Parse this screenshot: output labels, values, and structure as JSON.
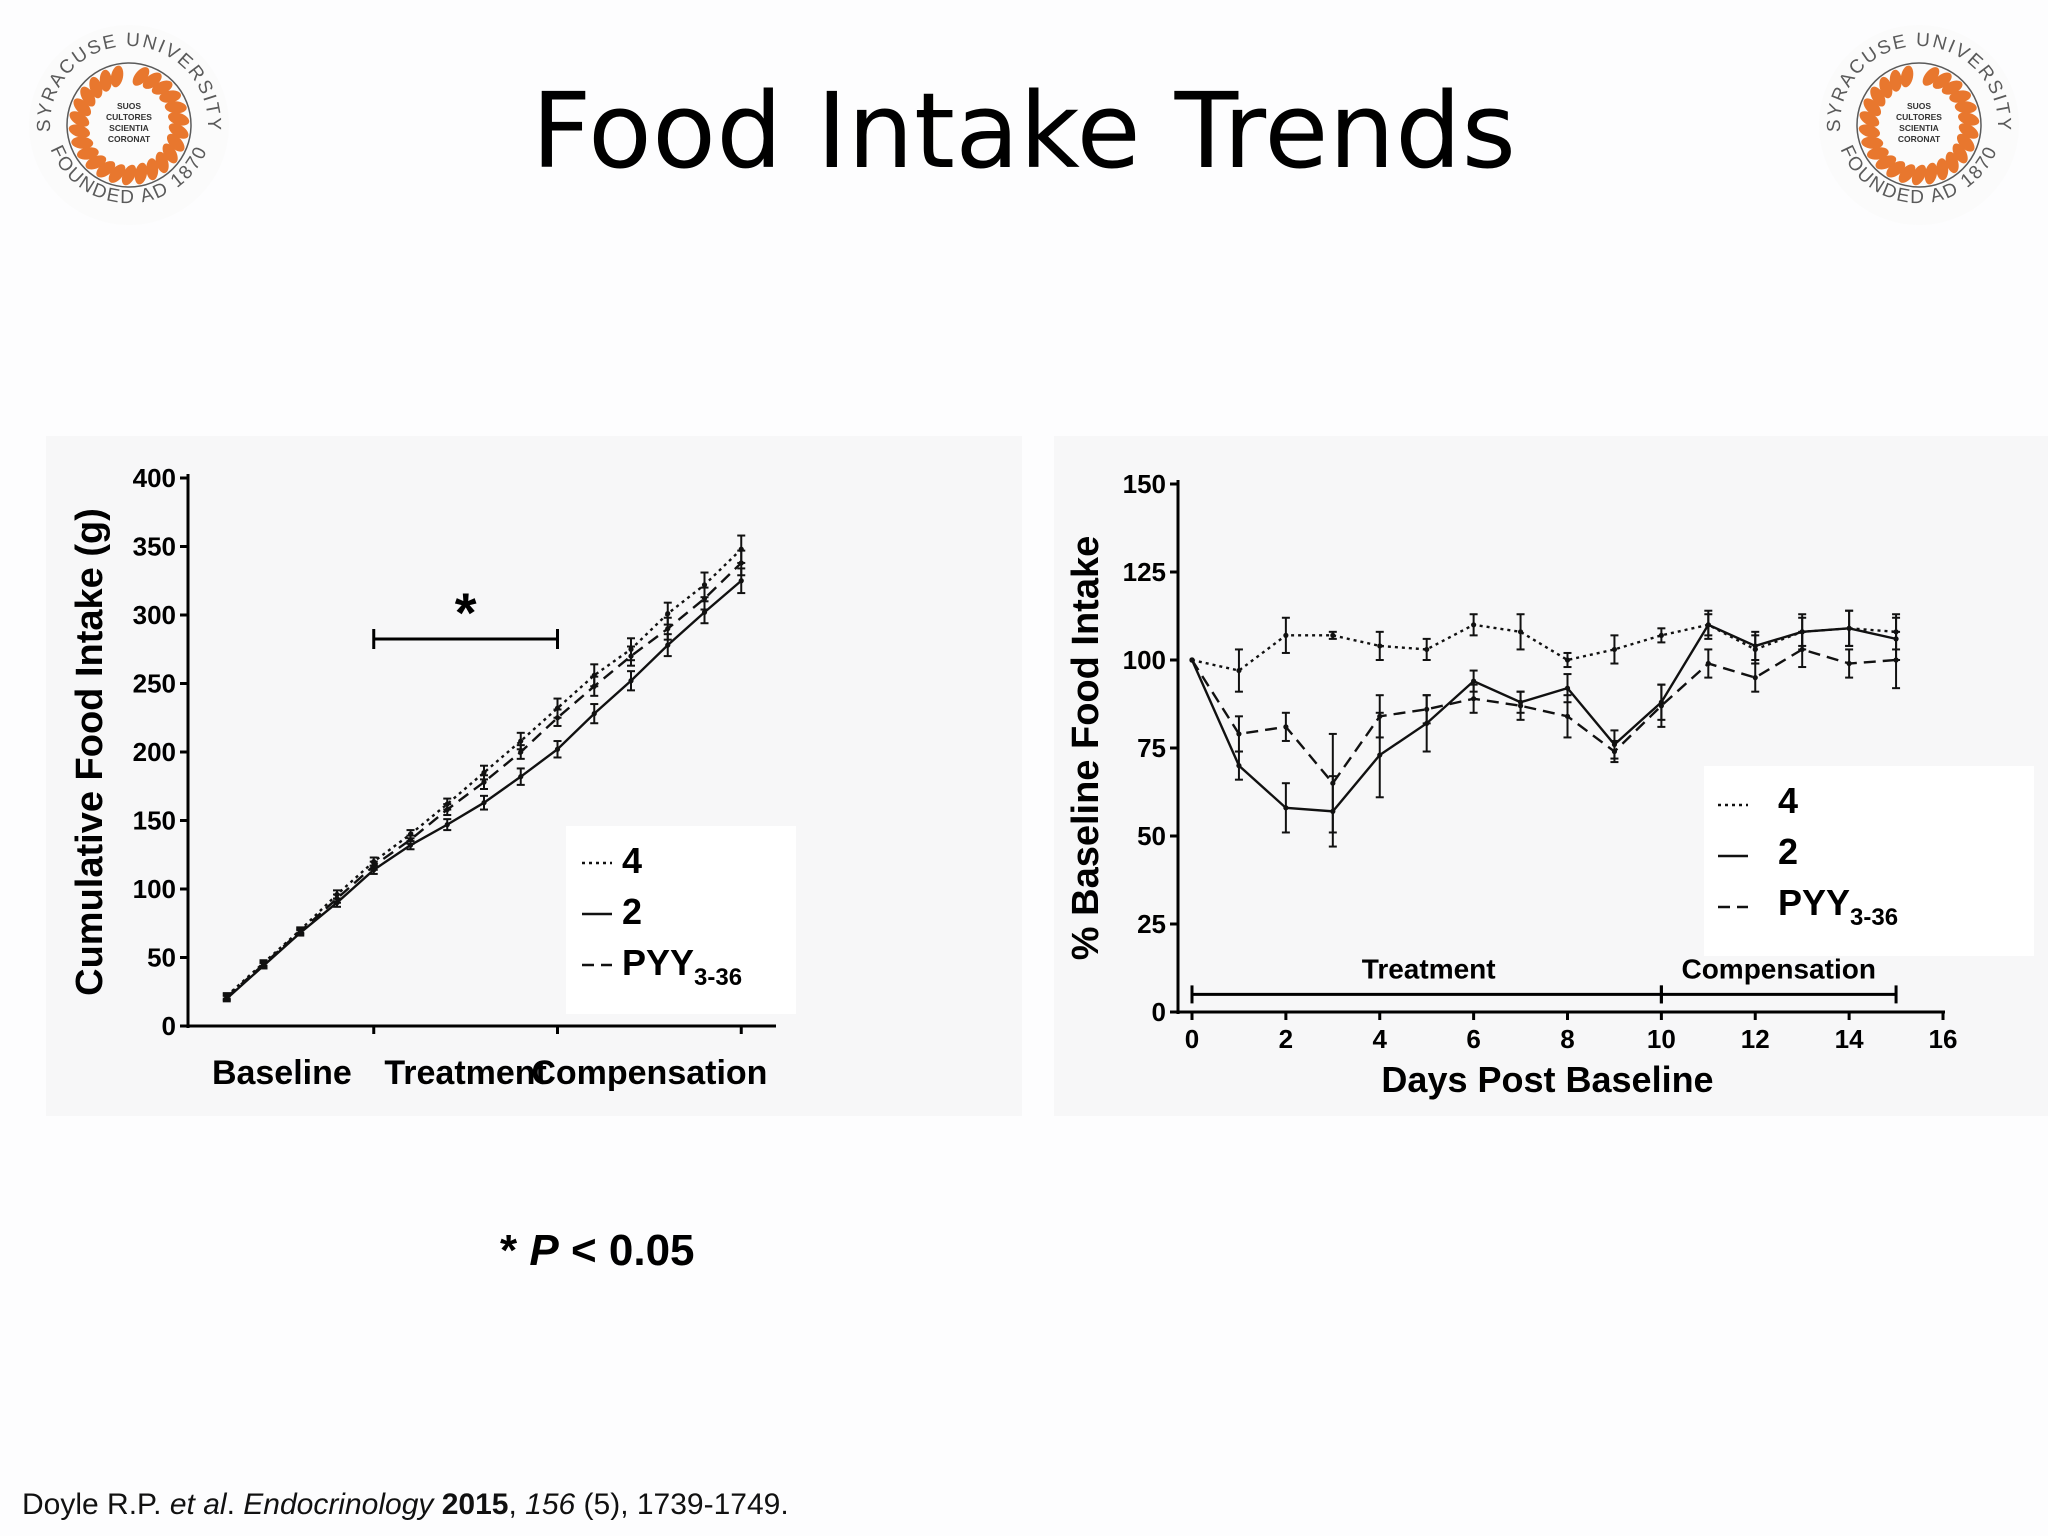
{
  "slide": {
    "title": "Food Intake Trends",
    "seal": {
      "ring_top": "SYRACUSE UNIVERSITY",
      "ring_bottom": "FOUNDED AD 1870",
      "center": [
        "SUOS",
        "CULTORES",
        "SCIENTIA",
        "CORONAT"
      ],
      "colors": {
        "leaf": "#e8772e",
        "ring": "#5a5a5a"
      }
    },
    "footnote": {
      "star": "*",
      "p": "P",
      "rest": "< 0.05"
    },
    "citation": {
      "authors": "Doyle R.P. ",
      "etal": "et al",
      "dot": ". ",
      "journal": "Endocrinology",
      "space1": " ",
      "year": "2015",
      "comma1": ", ",
      "volume": "156",
      "rest": " (5), 1739-1749."
    }
  },
  "chart_data": [
    {
      "type": "line",
      "ylabel": "Cumulative Food Intake (g)",
      "ylim": [
        0,
        400
      ],
      "yticks": [
        0,
        50,
        100,
        150,
        200,
        250,
        300,
        350,
        400
      ],
      "x": [
        0,
        1,
        2,
        3,
        4,
        5,
        6,
        7,
        8,
        9,
        10,
        11,
        12,
        13,
        14,
        15
      ],
      "xlim": [
        -1,
        15
      ],
      "phase_labels": [
        "Baseline",
        "Treatment",
        "Compensation"
      ],
      "phase_ticks": [
        4,
        9,
        14
      ],
      "significance": {
        "label": "*",
        "range": [
          4,
          9
        ]
      },
      "legend_position": "lower-right",
      "grid": false,
      "series": [
        {
          "name": "4",
          "style": "dotted",
          "values": [
            22,
            46,
            70,
            96,
            120,
            140,
            162,
            185,
            208,
            232,
            256,
            275,
            301,
            322,
            348,
            348
          ],
          "errors": [
            2,
            2,
            2,
            3,
            3,
            3,
            4,
            5,
            6,
            7,
            8,
            8,
            8,
            9,
            10,
            10
          ]
        },
        {
          "name": "2",
          "style": "solid",
          "values": [
            20,
            44,
            68,
            90,
            114,
            132,
            147,
            163,
            182,
            202,
            228,
            252,
            278,
            302,
            325,
            325
          ],
          "errors": [
            2,
            2,
            2,
            3,
            3,
            3,
            4,
            5,
            6,
            6,
            7,
            7,
            8,
            8,
            9,
            9
          ]
        },
        {
          "name": "PYY3-36",
          "style": "dashed",
          "values": [
            21,
            45,
            69,
            93,
            117,
            136,
            158,
            178,
            200,
            225,
            248,
            270,
            290,
            312,
            338,
            338
          ],
          "errors": [
            2,
            2,
            2,
            3,
            3,
            3,
            4,
            5,
            5,
            6,
            7,
            7,
            8,
            8,
            9,
            9
          ]
        }
      ]
    },
    {
      "type": "line",
      "xlabel": "Days Post Baseline",
      "ylabel": "% Baseline Food Intake",
      "xlim": [
        0,
        16
      ],
      "ylim": [
        0,
        150
      ],
      "xticks": [
        0,
        2,
        4,
        6,
        8,
        10,
        12,
        14,
        16
      ],
      "yticks": [
        0,
        25,
        50,
        75,
        100,
        125,
        150
      ],
      "phases": [
        {
          "label": "Treatment",
          "start": 0,
          "end": 10
        },
        {
          "label": "Compensation",
          "start": 10,
          "end": 15
        }
      ],
      "legend_position": "right",
      "grid": false,
      "series": [
        {
          "name": "4",
          "style": "dotted",
          "x": [
            0,
            1,
            2,
            3,
            4,
            5,
            6,
            7,
            8,
            9,
            10,
            11,
            12,
            13,
            14,
            15
          ],
          "values": [
            100,
            97,
            107,
            107,
            104,
            103,
            110,
            108,
            100,
            103,
            107,
            110,
            103,
            108,
            109,
            108
          ],
          "errors": [
            0,
            6,
            5,
            1,
            4,
            3,
            3,
            5,
            2,
            4,
            2,
            3,
            4,
            4,
            5,
            5
          ]
        },
        {
          "name": "2",
          "style": "solid",
          "x": [
            0,
            1,
            2,
            3,
            4,
            5,
            6,
            7,
            8,
            9,
            10,
            11,
            12,
            13,
            14,
            15
          ],
          "values": [
            100,
            70,
            58,
            57,
            73,
            82,
            94,
            88,
            92,
            76,
            88,
            110,
            104,
            108,
            109,
            106
          ],
          "errors": [
            0,
            4,
            7,
            10,
            12,
            8,
            3,
            3,
            4,
            4,
            5,
            4,
            4,
            5,
            5,
            6
          ]
        },
        {
          "name": "PYY3-36",
          "style": "dashed",
          "x": [
            0,
            1,
            2,
            3,
            4,
            5,
            6,
            7,
            8,
            9,
            10,
            11,
            12,
            13,
            14,
            15
          ],
          "values": [
            100,
            79,
            81,
            65,
            84,
            86,
            89,
            87,
            84,
            74,
            87,
            99,
            95,
            103,
            99,
            100
          ],
          "errors": [
            0,
            5,
            4,
            14,
            6,
            4,
            4,
            4,
            6,
            3,
            6,
            4,
            4,
            5,
            4,
            8
          ]
        }
      ]
    }
  ]
}
